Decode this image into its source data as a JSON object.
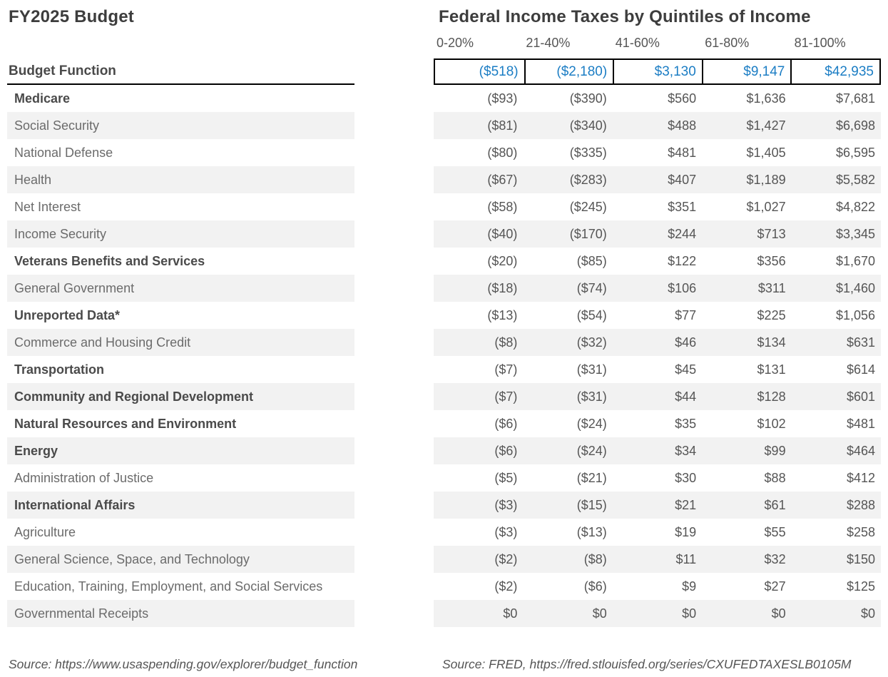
{
  "colors": {
    "accent_blue": "#1b7dc4",
    "stripe_gray": "#f2f2f2",
    "border_black": "#000000",
    "title_gray": "#3d3d3d",
    "label_gray": "#6b6b6b",
    "bold_label_gray": "#4a4a4a"
  },
  "sources": {
    "left": "Source: https://www.usaspending.gov/explorer/budget_function",
    "right": "Source: FRED, https://fred.stlouisfed.org/series/CXUFEDTAXESLB0105M"
  },
  "chart_data": {
    "type": "table",
    "titles": {
      "left": "FY2025 Budget",
      "right": "Federal Income Taxes by Quintiles of Income"
    },
    "row_header_label": "Budget Function",
    "columns": [
      "0-20%",
      "21-40%",
      "41-60%",
      "61-80%",
      "81-100%"
    ],
    "totals": [
      "($518)",
      "($2,180)",
      "$3,130",
      "$9,147",
      "$42,935"
    ],
    "layout_hints": {
      "total_row_style": "blue text, black cell borders",
      "row_striping": "alternating white / light gray starting white",
      "negative_format": "parentheses"
    },
    "rows": [
      {
        "label": "Medicare",
        "bold": true,
        "values": [
          "($93)",
          "($390)",
          "$560",
          "$1,636",
          "$7,681"
        ]
      },
      {
        "label": "Social Security",
        "bold": false,
        "values": [
          "($81)",
          "($340)",
          "$488",
          "$1,427",
          "$6,698"
        ]
      },
      {
        "label": "National Defense",
        "bold": false,
        "values": [
          "($80)",
          "($335)",
          "$481",
          "$1,405",
          "$6,595"
        ]
      },
      {
        "label": "Health",
        "bold": false,
        "values": [
          "($67)",
          "($283)",
          "$407",
          "$1,189",
          "$5,582"
        ]
      },
      {
        "label": "Net Interest",
        "bold": false,
        "values": [
          "($58)",
          "($245)",
          "$351",
          "$1,027",
          "$4,822"
        ]
      },
      {
        "label": "Income Security",
        "bold": false,
        "values": [
          "($40)",
          "($170)",
          "$244",
          "$713",
          "$3,345"
        ]
      },
      {
        "label": "Veterans Benefits and Services",
        "bold": true,
        "values": [
          "($20)",
          "($85)",
          "$122",
          "$356",
          "$1,670"
        ]
      },
      {
        "label": "General Government",
        "bold": false,
        "values": [
          "($18)",
          "($74)",
          "$106",
          "$311",
          "$1,460"
        ]
      },
      {
        "label": "Unreported Data*",
        "bold": true,
        "values": [
          "($13)",
          "($54)",
          "$77",
          "$225",
          "$1,056"
        ]
      },
      {
        "label": "Commerce and Housing Credit",
        "bold": false,
        "values": [
          "($8)",
          "($32)",
          "$46",
          "$134",
          "$631"
        ]
      },
      {
        "label": "Transportation",
        "bold": true,
        "values": [
          "($7)",
          "($31)",
          "$45",
          "$131",
          "$614"
        ]
      },
      {
        "label": "Community and Regional Development",
        "bold": true,
        "values": [
          "($7)",
          "($31)",
          "$44",
          "$128",
          "$601"
        ]
      },
      {
        "label": "Natural Resources and Environment",
        "bold": true,
        "values": [
          "($6)",
          "($24)",
          "$35",
          "$102",
          "$481"
        ]
      },
      {
        "label": "Energy",
        "bold": true,
        "values": [
          "($6)",
          "($24)",
          "$34",
          "$99",
          "$464"
        ]
      },
      {
        "label": "Administration of Justice",
        "bold": false,
        "values": [
          "($5)",
          "($21)",
          "$30",
          "$88",
          "$412"
        ]
      },
      {
        "label": "International Affairs",
        "bold": true,
        "values": [
          "($3)",
          "($15)",
          "$21",
          "$61",
          "$288"
        ]
      },
      {
        "label": "Agriculture",
        "bold": false,
        "values": [
          "($3)",
          "($13)",
          "$19",
          "$55",
          "$258"
        ]
      },
      {
        "label": "General Science, Space, and Technology",
        "bold": false,
        "values": [
          "($2)",
          "($8)",
          "$11",
          "$32",
          "$150"
        ]
      },
      {
        "label": "Education, Training, Employment, and Social Services",
        "bold": false,
        "values": [
          "($2)",
          "($6)",
          "$9",
          "$27",
          "$125"
        ]
      },
      {
        "label": "Governmental Receipts",
        "bold": false,
        "values": [
          "$0",
          "$0",
          "$0",
          "$0",
          "$0"
        ]
      }
    ]
  }
}
